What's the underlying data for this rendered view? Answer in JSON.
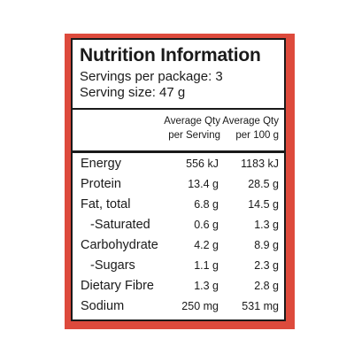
{
  "colors": {
    "panel_red": "#dd4a3c",
    "label_background": "#ffffff",
    "ink": "#1a1a1a"
  },
  "nutrition_panel": {
    "title": "Nutrition Information",
    "servings_per_package": "Servings per package: 3",
    "serving_size": "Serving size: 47 g",
    "columns": {
      "per_serving": [
        "Average Qty",
        "per Serving"
      ],
      "per_100g": [
        "Average Qty",
        "per 100 g"
      ]
    },
    "rows": [
      {
        "name": "Energy",
        "per_serving": "556 kJ",
        "per_100g": "1183 kJ"
      },
      {
        "name": "Protein",
        "per_serving": "13.4 g",
        "per_100g": "28.5 g"
      },
      {
        "name": "Fat, total",
        "per_serving": "6.8 g",
        "per_100g": "14.5 g"
      },
      {
        "name": "-Saturated",
        "per_serving": "0.6 g",
        "per_100g": "1.3 g"
      },
      {
        "name": "Carbohydrate",
        "per_serving": "4.2 g",
        "per_100g": "8.9 g"
      },
      {
        "name": "-Sugars",
        "per_serving": "1.1 g",
        "per_100g": "2.3 g"
      },
      {
        "name": "Dietary Fibre",
        "per_serving": "1.3 g",
        "per_100g": "2.8 g"
      },
      {
        "name": "Sodium",
        "per_serving": "250 mg",
        "per_100g": "531 mg"
      }
    ]
  }
}
